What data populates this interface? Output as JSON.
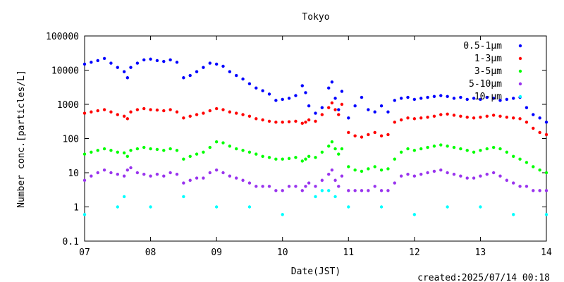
{
  "chart_data": {
    "type": "scatter",
    "title": "Tokyo",
    "xlabel": "Date(JST)",
    "ylabel": "Number conc.[particles/L]",
    "footer": "created:2025/07/14 00:18",
    "y_scale": "log",
    "ylim": [
      0.1,
      100000
    ],
    "y_ticks": [
      0.1,
      1,
      10,
      100,
      1000,
      10000,
      100000
    ],
    "y_tick_labels": [
      "0.1",
      "1",
      "10",
      "100",
      "1000",
      "10000",
      "100000"
    ],
    "xlim": [
      "07",
      "14"
    ],
    "x_tick_labels": [
      "07",
      "08",
      "09",
      "10",
      "11",
      "12",
      "13",
      "14"
    ],
    "grid": false,
    "legend_position": "top-right",
    "series": [
      {
        "name": "0.5-1μm",
        "color": "#0000ff",
        "x": [
          "07",
          "07.1",
          "07.2",
          "07.3",
          "07.4",
          "07.5",
          "07.6",
          "07.65",
          "07.7",
          "07.8",
          "07.9",
          "08",
          "08.1",
          "08.2",
          "08.3",
          "08.4",
          "08.5",
          "08.6",
          "08.7",
          "08.8",
          "08.9",
          "09",
          "09.1",
          "09.2",
          "09.3",
          "09.4",
          "09.5",
          "09.6",
          "09.7",
          "09.8",
          "09.9",
          "10",
          "10.1",
          "10.2",
          "10.3",
          "10.35",
          "10.4",
          "10.5",
          "10.6",
          "10.7",
          "10.75",
          "10.8",
          "10.85",
          "10.9",
          "11",
          "11.1",
          "11.2",
          "11.3",
          "11.4",
          "11.5",
          "11.6",
          "11.7",
          "11.8",
          "11.9",
          "12",
          "12.1",
          "12.2",
          "12.3",
          "12.4",
          "12.5",
          "12.6",
          "12.7",
          "12.8",
          "12.9",
          "13",
          "13.1",
          "13.2",
          "13.3",
          "13.4",
          "13.5",
          "13.6",
          "13.7",
          "13.8",
          "13.9",
          "14"
        ],
        "y": [
          15000,
          17000,
          19000,
          22000,
          16000,
          12000,
          9000,
          6000,
          12000,
          16000,
          20000,
          21000,
          19000,
          18000,
          20000,
          17000,
          6000,
          7000,
          9000,
          12000,
          16000,
          15000,
          13000,
          9000,
          7000,
          5500,
          4000,
          3000,
          2500,
          2000,
          1300,
          1400,
          1500,
          1800,
          3500,
          2200,
          900,
          550,
          800,
          3000,
          4500,
          1500,
          700,
          2400,
          400,
          900,
          1600,
          700,
          600,
          900,
          600,
          1300,
          1500,
          1600,
          1400,
          1500,
          1600,
          1700,
          1800,
          1700,
          1500,
          1600,
          1400,
          1500,
          1400,
          1600,
          1500,
          1300,
          1400,
          1500,
          1600,
          800,
          500,
          400,
          300
        ]
      },
      {
        "name": "1-3μm",
        "color": "#ff0000",
        "x": [
          "07",
          "07.1",
          "07.2",
          "07.3",
          "07.4",
          "07.5",
          "07.6",
          "07.65",
          "07.7",
          "07.8",
          "07.9",
          "08",
          "08.1",
          "08.2",
          "08.3",
          "08.4",
          "08.5",
          "08.6",
          "08.7",
          "08.8",
          "08.9",
          "09",
          "09.1",
          "09.2",
          "09.3",
          "09.4",
          "09.5",
          "09.6",
          "09.7",
          "09.8",
          "09.9",
          "10",
          "10.1",
          "10.2",
          "10.3",
          "10.35",
          "10.4",
          "10.5",
          "10.6",
          "10.7",
          "10.75",
          "10.8",
          "10.85",
          "10.9",
          "11",
          "11.1",
          "11.2",
          "11.3",
          "11.4",
          "11.5",
          "11.6",
          "11.7",
          "11.8",
          "11.9",
          "12",
          "12.1",
          "12.2",
          "12.3",
          "12.4",
          "12.5",
          "12.6",
          "12.7",
          "12.8",
          "12.9",
          "13",
          "13.1",
          "13.2",
          "13.3",
          "13.4",
          "13.5",
          "13.6",
          "13.7",
          "13.8",
          "13.9",
          "14"
        ],
        "y": [
          550,
          600,
          650,
          700,
          600,
          500,
          450,
          380,
          600,
          700,
          750,
          700,
          680,
          650,
          700,
          600,
          400,
          450,
          500,
          550,
          650,
          750,
          700,
          600,
          550,
          500,
          450,
          380,
          350,
          320,
          300,
          300,
          310,
          320,
          280,
          300,
          350,
          320,
          500,
          800,
          1100,
          700,
          500,
          1000,
          150,
          120,
          110,
          130,
          150,
          120,
          130,
          300,
          350,
          400,
          380,
          400,
          420,
          450,
          500,
          520,
          480,
          450,
          420,
          400,
          420,
          450,
          480,
          450,
          420,
          400,
          380,
          300,
          200,
          150,
          130
        ]
      },
      {
        "name": "3-5μm",
        "color": "#00ff00",
        "x": [
          "07",
          "07.1",
          "07.2",
          "07.3",
          "07.4",
          "07.5",
          "07.6",
          "07.65",
          "07.7",
          "07.8",
          "07.9",
          "08",
          "08.1",
          "08.2",
          "08.3",
          "08.4",
          "08.5",
          "08.6",
          "08.7",
          "08.8",
          "08.9",
          "09",
          "09.1",
          "09.2",
          "09.3",
          "09.4",
          "09.5",
          "09.6",
          "09.7",
          "09.8",
          "09.9",
          "10",
          "10.1",
          "10.2",
          "10.3",
          "10.35",
          "10.4",
          "10.5",
          "10.6",
          "10.7",
          "10.75",
          "10.8",
          "10.85",
          "10.9",
          "11",
          "11.1",
          "11.2",
          "11.3",
          "11.4",
          "11.5",
          "11.6",
          "11.7",
          "11.8",
          "11.9",
          "12",
          "12.1",
          "12.2",
          "12.3",
          "12.4",
          "12.5",
          "12.6",
          "12.7",
          "12.8",
          "12.9",
          "13",
          "13.1",
          "13.2",
          "13.3",
          "13.4",
          "13.5",
          "13.6",
          "13.7",
          "13.8",
          "13.9",
          "14"
        ],
        "y": [
          35,
          40,
          45,
          50,
          45,
          40,
          38,
          30,
          45,
          50,
          55,
          50,
          48,
          45,
          50,
          45,
          25,
          30,
          35,
          40,
          55,
          80,
          75,
          60,
          50,
          45,
          40,
          35,
          30,
          28,
          25,
          25,
          26,
          28,
          22,
          25,
          30,
          28,
          40,
          60,
          80,
          50,
          35,
          50,
          15,
          12,
          11,
          13,
          15,
          12,
          13,
          25,
          40,
          50,
          45,
          50,
          55,
          60,
          65,
          60,
          55,
          50,
          45,
          40,
          45,
          50,
          55,
          50,
          40,
          30,
          25,
          20,
          15,
          12,
          10
        ]
      },
      {
        "name": "5-10μm",
        "color": "#9933ee",
        "x": [
          "07",
          "07.1",
          "07.2",
          "07.3",
          "07.4",
          "07.5",
          "07.6",
          "07.65",
          "07.7",
          "07.8",
          "07.9",
          "08",
          "08.1",
          "08.2",
          "08.3",
          "08.4",
          "08.5",
          "08.6",
          "08.7",
          "08.8",
          "08.9",
          "09",
          "09.1",
          "09.2",
          "09.3",
          "09.4",
          "09.5",
          "09.6",
          "09.7",
          "09.8",
          "09.9",
          "10",
          "10.1",
          "10.2",
          "10.3",
          "10.35",
          "10.4",
          "10.5",
          "10.6",
          "10.7",
          "10.75",
          "10.8",
          "10.85",
          "10.9",
          "11",
          "11.1",
          "11.2",
          "11.3",
          "11.4",
          "11.5",
          "11.6",
          "11.7",
          "11.8",
          "11.9",
          "12",
          "12.1",
          "12.2",
          "12.3",
          "12.4",
          "12.5",
          "12.6",
          "12.7",
          "12.8",
          "12.9",
          "13",
          "13.1",
          "13.2",
          "13.3",
          "13.4",
          "13.5",
          "13.6",
          "13.7",
          "13.8",
          "13.9",
          "14"
        ],
        "y": [
          6,
          8,
          10,
          12,
          10,
          9,
          8,
          12,
          14,
          10,
          9,
          8,
          9,
          8,
          10,
          9,
          5,
          6,
          7,
          7,
          10,
          12,
          10,
          8,
          7,
          6,
          5,
          4,
          4,
          4,
          3,
          3,
          4,
          4,
          3,
          4,
          5,
          4,
          6,
          9,
          12,
          6,
          4,
          8,
          3,
          3,
          3,
          3,
          4,
          3,
          3,
          5,
          8,
          9,
          8,
          9,
          10,
          11,
          12,
          10,
          9,
          8,
          7,
          7,
          8,
          9,
          10,
          8,
          6,
          5,
          4,
          4,
          3,
          3,
          3
        ]
      },
      {
        "name": "10-μm",
        "color": "#00ffff",
        "x": [
          "07",
          "07.5",
          "07.6",
          "08",
          "08.5",
          "09",
          "09.5",
          "10",
          "10.5",
          "10.6",
          "10.7",
          "10.8",
          "11",
          "11.5",
          "12",
          "12.5",
          "13",
          "13.5",
          "14"
        ],
        "y": [
          0.6,
          1,
          2,
          1,
          2,
          1,
          1,
          0.6,
          2,
          3,
          3,
          2,
          1,
          1,
          0.6,
          1,
          1,
          0.6,
          0.6
        ]
      }
    ]
  }
}
